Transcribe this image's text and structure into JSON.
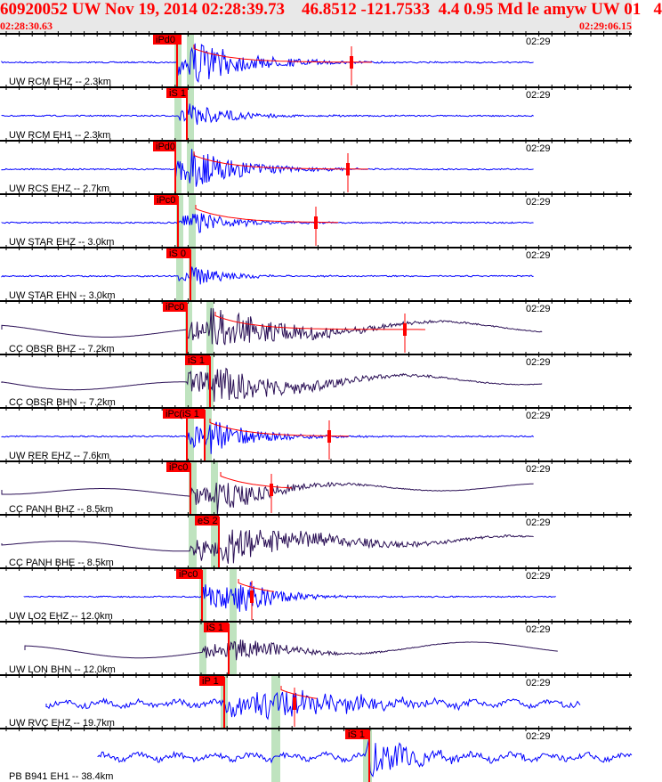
{
  "header": {
    "title": "60920052 UW Nov 19, 2014 02:28:39.73    46.8512 -121.7533  4.4 0.95 Md le amyw UW 01   4",
    "start_time": "02:28:30.63",
    "end_time": "02:29:06.15"
  },
  "colors": {
    "header_text": "#ff0000",
    "short_period_trace": "#0000ff",
    "broadband_trace": "#2a0f55",
    "pick": "#ff0000",
    "window": "#bfe3bf"
  },
  "traces": [
    {
      "station": "UW RCM EHZ -- 2.3km",
      "pick": "iPd0",
      "time_label": "02:29"
    },
    {
      "station": "UW RCM EH1 -- 2.3km",
      "pick": "iS 1",
      "time_label": "02:29"
    },
    {
      "station": "UW RCS EHZ -- 2.7km",
      "pick": "iPd0",
      "time_label": "02:29"
    },
    {
      "station": "UW STAR EHZ -- 3.0km",
      "pick": "iPc0",
      "time_label": "02:29"
    },
    {
      "station": "UW STAR EHN -- 3.0km",
      "pick": "iS 0",
      "time_label": "02:29"
    },
    {
      "station": "CC OBSR BHZ -- 7.2km",
      "pick": "iPc0",
      "time_label": "02:29"
    },
    {
      "station": "CC OBSR BHN -- 7.2km",
      "pick": "iS 1",
      "time_label": "02:29"
    },
    {
      "station": "UW RER EHZ -- 7.6km",
      "pick": "iPc(iS 1",
      "time_label": "02:29"
    },
    {
      "station": "CC PANH BHZ -- 8.5km",
      "pick": "iPc0",
      "time_label": "02:29"
    },
    {
      "station": "CC PANH BHE -- 8.5km",
      "pick": "eS 2",
      "time_label": "02:29"
    },
    {
      "station": "UW LO2 EHZ -- 12.0km",
      "pick": "iPc0",
      "time_label": "02:29"
    },
    {
      "station": "UW LON BHN -- 12.0km",
      "pick": "iS 1",
      "time_label": "02:29"
    },
    {
      "station": "UW RVC EHZ -- 19.7km",
      "pick": "iP 1",
      "time_label": "02:29"
    },
    {
      "station": "PB B941 EH1 -- 38.4km",
      "pick": "iS 1",
      "time_label": "02:29"
    }
  ]
}
